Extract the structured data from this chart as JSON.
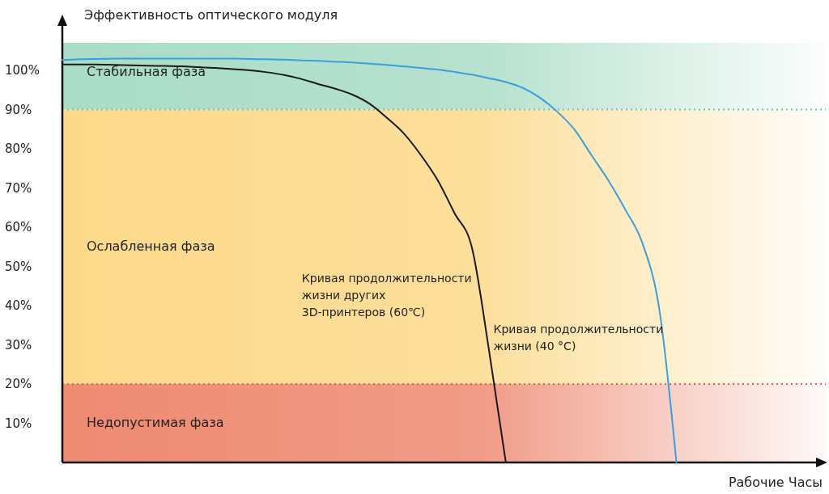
{
  "chart_data": {
    "type": "line",
    "xlabel": "Рабочие Часы",
    "ylabel": "Эффективность оптического модуля",
    "categories": [
      null,
      null,
      null,
      null,
      null,
      null,
      null,
      null,
      null,
      null,
      null,
      null,
      null,
      null,
      null,
      null,
      null,
      null,
      null,
      null,
      null,
      null,
      null,
      null,
      null,
      null,
      null,
      null,
      null,
      null,
      null,
      null,
      null,
      null,
      null,
      null,
      null,
      null,
      null,
      null,
      null,
      null,
      null,
      null,
      null
    ],
    "ylim": [
      0,
      107
    ],
    "yticks": [
      {
        "value": 10,
        "label": "10%"
      },
      {
        "value": 20,
        "label": "20%"
      },
      {
        "value": 30,
        "label": "30%"
      },
      {
        "value": 40,
        "label": "40%"
      },
      {
        "value": 50,
        "label": "50%"
      },
      {
        "value": 60,
        "label": "60%"
      },
      {
        "value": 70,
        "label": "70%"
      },
      {
        "value": 80,
        "label": "80%"
      },
      {
        "value": 90,
        "label": "90%"
      },
      {
        "value": 100,
        "label": "100%"
      }
    ],
    "tick_labels": "y",
    "grid": false,
    "legend": false,
    "marker": "none",
    "line_style": "solid",
    "bands": [
      {
        "axis": "y",
        "from": 90,
        "to": 107,
        "label": "Стабильная фаза",
        "color": "#a9dcc6"
      },
      {
        "axis": "y",
        "from": 20,
        "to": 90,
        "label": "Ослабленная фаза",
        "color": "#fcd98a"
      },
      {
        "axis": "y",
        "from": 0,
        "to": 20,
        "label": "Недопустимая фаза",
        "color": "#ee8a72"
      }
    ],
    "ref_lines": [
      {
        "axis": "y",
        "value": 90,
        "color": "#6cc6b8",
        "line_style": "dotted"
      },
      {
        "axis": "y",
        "value": 20,
        "color": "#e8604a",
        "line_style": "dotted"
      }
    ],
    "series": [
      {
        "name": "Кривая продолжительности жизни других 3D-принтеров (60℃)",
        "color": "#1a1a1a",
        "values": [
          101.5,
          101.5,
          101.5,
          101.4,
          101.3,
          101.2,
          101.1,
          101,
          100.8,
          100.6,
          100.3,
          100,
          99.5,
          98.8,
          97.8,
          96.5,
          95.3,
          93.8,
          91.5,
          88,
          84,
          78.5,
          72,
          63.5,
          55,
          29,
          0,
          null,
          null,
          null,
          null,
          null,
          null,
          null,
          null,
          null,
          null,
          null,
          null,
          null,
          null,
          null,
          null,
          null,
          null
        ]
      },
      {
        "name": "Кривая продолжительности жизни (40 °C)",
        "color": "#3ba0d8",
        "values": [
          102.6,
          102.8,
          102.9,
          103,
          103,
          103,
          103,
          103,
          103,
          103,
          103,
          102.9,
          102.8,
          102.7,
          102.5,
          102.4,
          102.2,
          102,
          101.7,
          101.4,
          101,
          100.6,
          100.2,
          99.6,
          98.9,
          98,
          97,
          95.5,
          93,
          89.5,
          85,
          78.5,
          72,
          64.5,
          56,
          39,
          0,
          null,
          null,
          null,
          null,
          null,
          null,
          null,
          null
        ]
      }
    ]
  }
}
